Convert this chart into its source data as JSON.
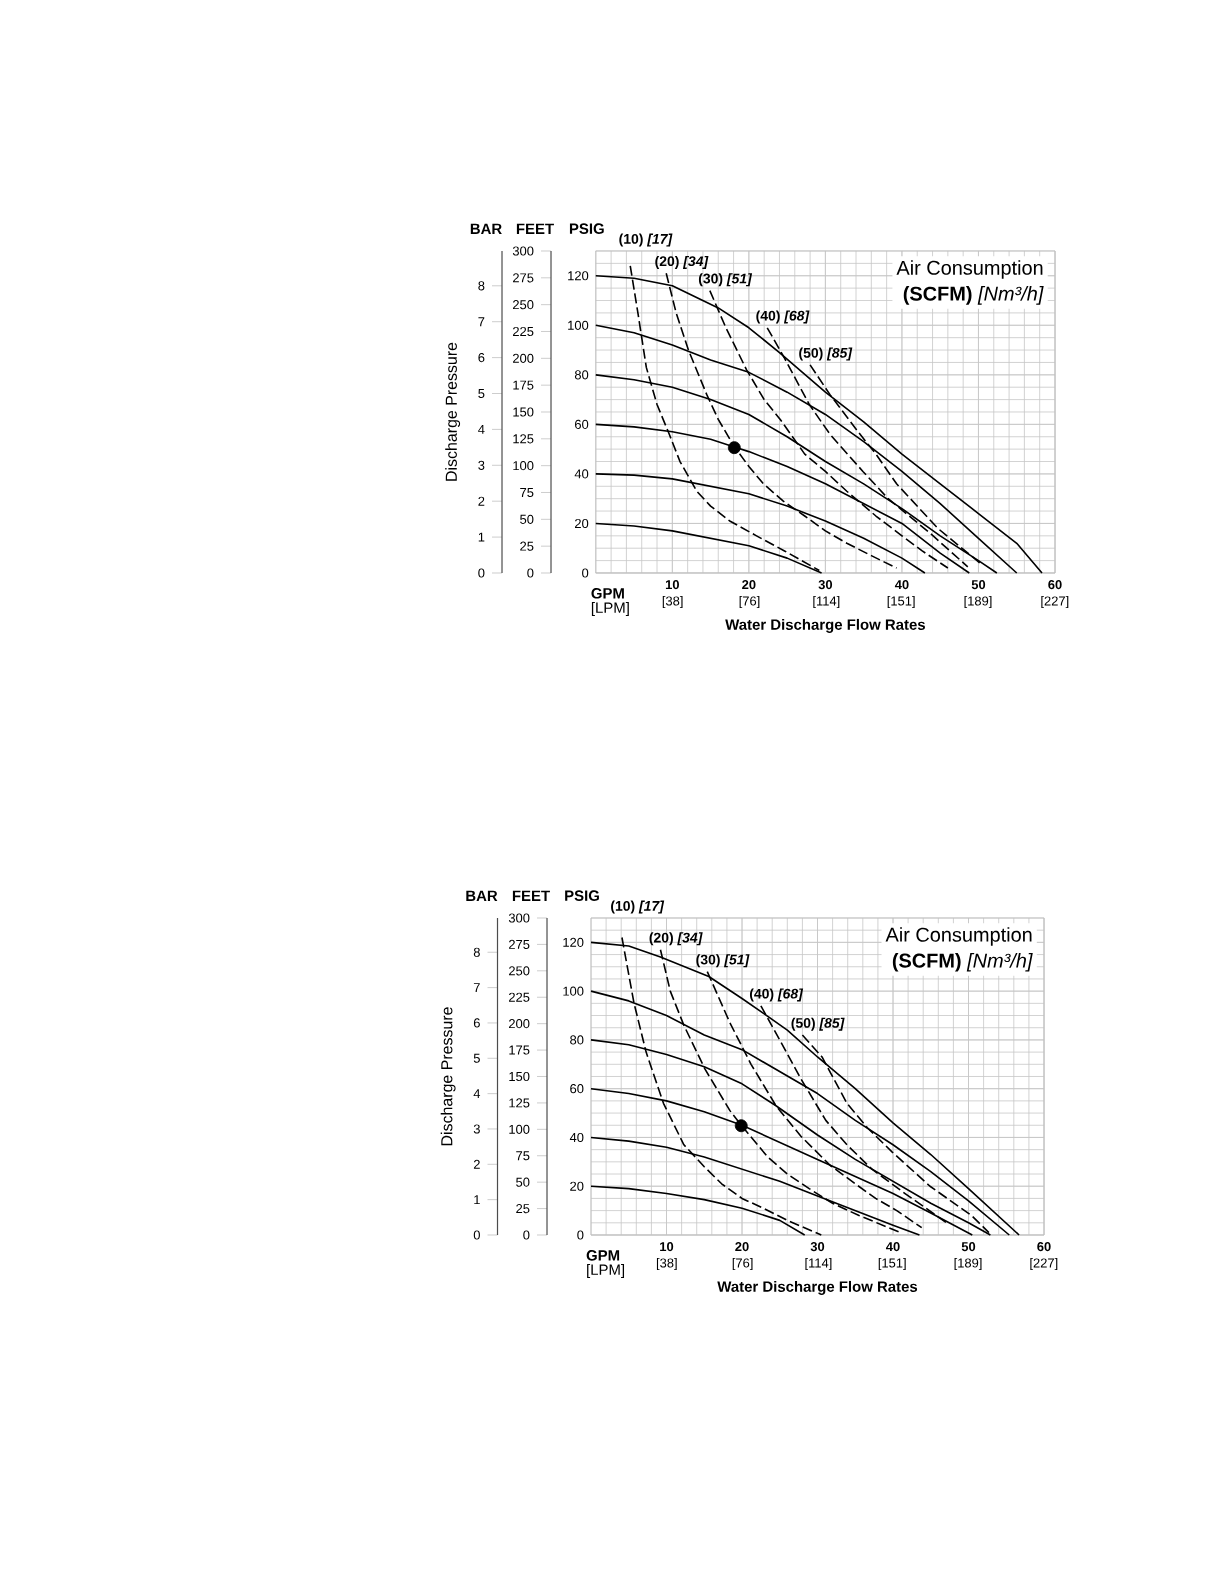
{
  "chart_data": [
    {
      "type": "line",
      "title": "Air Consumption",
      "subtitle": "**(SCFM)** *[Nm³/h]*",
      "xlabel": "Water Discharge Flow Rates",
      "ylabel": "PSIG",
      "y2label": "FEET",
      "y3label": "Discharge Pressure",
      "x2label": "[LPM]",
      "annotations": [
        "BAR",
        "GPM"
      ],
      "xlim": [
        0,
        60
      ],
      "xticks": [
        10,
        20,
        30,
        40,
        50,
        60
      ],
      "x2lim": [
        0,
        227.1
      ],
      "x2ticks": [
        {
          "value": 38,
          "label": "[38]"
        },
        {
          "value": 76,
          "label": "[76]"
        },
        {
          "value": 114,
          "label": "[114]"
        },
        {
          "value": 151,
          "label": "[151]"
        },
        {
          "value": 189,
          "label": "[189]"
        },
        {
          "value": 227,
          "label": "[227]"
        }
      ],
      "ylim": [
        0,
        130
      ],
      "yticks": [
        0,
        20,
        40,
        60,
        80,
        100,
        120
      ],
      "y2lim": [
        0,
        300
      ],
      "y2ticks": [
        0,
        25,
        50,
        75,
        100,
        125,
        150,
        175,
        200,
        225,
        250,
        275,
        300
      ],
      "y3lim": [
        0,
        8.97
      ],
      "y3ticks": [
        0,
        1,
        2,
        3,
        4,
        5,
        6,
        7,
        8
      ],
      "grid": true,
      "line_style": "solid",
      "series": [
        {
          "color": "#000000",
          "x": [
            0,
            5,
            10,
            16,
            20,
            24,
            27,
            30,
            35,
            40,
            45,
            50,
            55,
            58.3
          ],
          "values": [
            120,
            119,
            116,
            107,
            99,
            89,
            81,
            73,
            61,
            48,
            36,
            24,
            12,
            0
          ]
        },
        {
          "color": "#000000",
          "x": [
            0,
            5,
            10,
            15,
            20,
            25,
            30,
            35,
            40,
            45,
            50,
            55
          ],
          "values": [
            100,
            97,
            92,
            86,
            81,
            73,
            64,
            53,
            41,
            28,
            14,
            0
          ]
        },
        {
          "color": "#000000",
          "x": [
            0,
            5,
            10,
            15,
            20,
            25,
            30,
            35,
            40,
            45,
            50,
            52.4
          ],
          "values": [
            80,
            78,
            75,
            70,
            64,
            55,
            45,
            36,
            26,
            15,
            5,
            0
          ]
        },
        {
          "color": "#000000",
          "x": [
            0,
            5,
            10,
            15,
            18,
            20,
            25,
            30,
            35,
            40,
            45,
            48.8
          ],
          "values": [
            60,
            59,
            57,
            54,
            51,
            49,
            43,
            36,
            28,
            20,
            8,
            0
          ]
        },
        {
          "color": "#000000",
          "x": [
            0,
            5,
            10,
            15,
            20,
            25,
            30,
            35,
            40,
            43
          ],
          "values": [
            40,
            39.5,
            38,
            35,
            32,
            27,
            21,
            14,
            6,
            0
          ]
        },
        {
          "color": "#000000",
          "x": [
            0,
            5,
            10,
            15,
            20,
            25,
            29.5
          ],
          "values": [
            20,
            19,
            17,
            14,
            11,
            6,
            0
          ]
        },
        {
          "name": "(10) *[17]*",
          "color": "#000000",
          "line_style": "dashed",
          "x": [
            4.5,
            5.5,
            6.6,
            8,
            9.6,
            11,
            13.2,
            15,
            17.5,
            21,
            24.6,
            29.2
          ],
          "values": [
            124,
            105,
            83,
            68,
            56,
            45,
            33,
            27,
            21,
            15,
            9,
            1
          ]
        },
        {
          "name": "(20) *[34]*",
          "color": "#000000",
          "line_style": "dashed",
          "x": [
            9.2,
            10.5,
            12.1,
            14.5,
            16,
            18.1,
            20,
            21.9,
            24.5,
            27.3,
            30,
            32.8,
            36,
            39.3
          ],
          "values": [
            121,
            105,
            90,
            72,
            62,
            51,
            43,
            36,
            29,
            23,
            17,
            12,
            7,
            2
          ]
        },
        {
          "name": "(30) *[51]*",
          "color": "#000000",
          "line_style": "dashed",
          "x": [
            14.9,
            17,
            19.7,
            22,
            24.1,
            27.3,
            30,
            32.8,
            36.6,
            40,
            42.6,
            46
          ],
          "values": [
            114,
            99,
            82,
            70,
            62,
            48,
            41,
            33,
            23,
            15,
            9,
            2
          ]
        },
        {
          "name": "(40) *[68]*",
          "color": "#000000",
          "line_style": "dashed",
          "x": [
            22.4,
            24.6,
            27.9,
            30.6,
            34.9,
            38.2,
            43.7,
            48.6
          ],
          "values": [
            99,
            87,
            68,
            56,
            41,
            30,
            16,
            2.5
          ]
        },
        {
          "name": "(50) *[85]*",
          "color": "#000000",
          "line_style": "dashed",
          "x": [
            28,
            30.6,
            34.4,
            36.6,
            39.3,
            44.7,
            50.2
          ],
          "values": [
            84,
            72,
            56.5,
            48,
            36,
            18,
            4
          ]
        },
        {
          "type": "scatter",
          "marker": "circle",
          "color": "#000000",
          "x": [
            18.1
          ],
          "values": [
            50.6
          ]
        }
      ]
    },
    {
      "type": "line",
      "title": "Air Consumption",
      "subtitle": "**(SCFM)** *[Nm³/h]*",
      "xlabel": "Water Discharge Flow Rates",
      "ylabel": "PSIG",
      "y2label": "FEET",
      "y3label": "Discharge Pressure",
      "x2label": "[LPM]",
      "annotations": [
        "BAR",
        "GPM"
      ],
      "xlim": [
        0,
        60
      ],
      "xticks": [
        10,
        20,
        30,
        40,
        50,
        60
      ],
      "x2lim": [
        0,
        227.1
      ],
      "x2ticks": [
        {
          "value": 38,
          "label": "[38]"
        },
        {
          "value": 76,
          "label": "[76]"
        },
        {
          "value": 114,
          "label": "[114]"
        },
        {
          "value": 151,
          "label": "[151]"
        },
        {
          "value": 189,
          "label": "[189]"
        },
        {
          "value": 227,
          "label": "[227]"
        }
      ],
      "ylim": [
        0,
        130
      ],
      "yticks": [
        0,
        20,
        40,
        60,
        80,
        100,
        120
      ],
      "y2lim": [
        0,
        300
      ],
      "y2ticks": [
        0,
        25,
        50,
        75,
        100,
        125,
        150,
        175,
        200,
        225,
        250,
        275,
        300
      ],
      "y3lim": [
        0,
        8.97
      ],
      "y3ticks": [
        0,
        1,
        2,
        3,
        4,
        5,
        6,
        7,
        8
      ],
      "grid": true,
      "line_style": "solid",
      "series": [
        {
          "color": "#000000",
          "x": [
            0,
            5,
            9.2,
            15.6,
            20,
            22.8,
            26,
            30,
            35,
            40,
            45,
            50,
            56.7
          ],
          "values": [
            120,
            118.5,
            114,
            106,
            97,
            91,
            84,
            73,
            60,
            46,
            33,
            19,
            0
          ]
        },
        {
          "color": "#000000",
          "x": [
            0,
            5,
            10,
            15,
            20,
            25,
            30,
            35,
            40,
            45,
            50,
            55.4
          ],
          "values": [
            100,
            96,
            90,
            82,
            76,
            67,
            58,
            47,
            37,
            26,
            14,
            0
          ]
        },
        {
          "color": "#000000",
          "x": [
            0,
            5,
            10,
            15,
            20,
            24.5,
            30,
            35,
            40,
            45,
            50,
            52.9
          ],
          "values": [
            80,
            78,
            74,
            69,
            62,
            53,
            41,
            31,
            22,
            13,
            5,
            0
          ]
        },
        {
          "color": "#000000",
          "x": [
            0,
            5,
            10,
            15,
            20,
            25,
            30,
            35,
            40,
            45,
            50.5
          ],
          "values": [
            60,
            58,
            55,
            50.5,
            45,
            38,
            31,
            24,
            17,
            9,
            0
          ]
        },
        {
          "color": "#000000",
          "x": [
            0,
            5,
            10,
            15,
            20,
            25,
            30,
            35,
            40,
            43.5
          ],
          "values": [
            40,
            38.5,
            36,
            32,
            27,
            22,
            16,
            10,
            4,
            0
          ]
        },
        {
          "color": "#000000",
          "x": [
            0,
            5,
            10,
            15,
            20,
            25,
            28.3
          ],
          "values": [
            20,
            19,
            17,
            14.5,
            11,
            6,
            0
          ]
        },
        {
          "name": "(10) *[17]*",
          "color": "#000000",
          "line_style": "dashed",
          "x": [
            4.1,
            5.7,
            7.3,
            9.6,
            12.3,
            15,
            17.3,
            20,
            22.8,
            26,
            30.5
          ],
          "values": [
            122,
            95,
            75,
            54,
            37,
            28,
            21,
            15,
            11,
            6,
            0
          ]
        },
        {
          "name": "(20) *[34]*",
          "color": "#000000",
          "line_style": "dashed",
          "x": [
            9.2,
            10.5,
            12.3,
            15.1,
            18.4,
            19.9,
            23.4,
            26,
            28.9,
            32,
            35.5,
            41
          ],
          "values": [
            117,
            100,
            86,
            68,
            51,
            45,
            32,
            25,
            19,
            13,
            8,
            1
          ]
        },
        {
          "name": "(30) *[51]*",
          "color": "#000000",
          "line_style": "dashed",
          "x": [
            15.4,
            18.4,
            21.2,
            24.5,
            27.8,
            31.7,
            35,
            37.7,
            40.5,
            43.8
          ],
          "values": [
            108,
            87,
            70,
            53,
            40.5,
            28.5,
            21,
            15,
            10,
            3
          ]
        },
        {
          "name": "(40) *[68]*",
          "color": "#000000",
          "line_style": "dashed",
          "x": [
            22.5,
            25,
            27.8,
            31.1,
            33.9,
            37.2,
            41.6,
            47.1
          ],
          "values": [
            94,
            80,
            64,
            47,
            37,
            27,
            17,
            5
          ]
        },
        {
          "name": "(50) *[85]*",
          "color": "#000000",
          "line_style": "dashed",
          "x": [
            28,
            30.6,
            33.9,
            36.6,
            39.9,
            44.9,
            50.4,
            52.7
          ],
          "values": [
            82,
            73,
            54,
            44,
            34,
            20,
            8,
            1
          ]
        },
        {
          "type": "scatter",
          "marker": "circle",
          "color": "#000000",
          "x": [
            19.9
          ],
          "values": [
            44.8
          ]
        }
      ]
    }
  ]
}
